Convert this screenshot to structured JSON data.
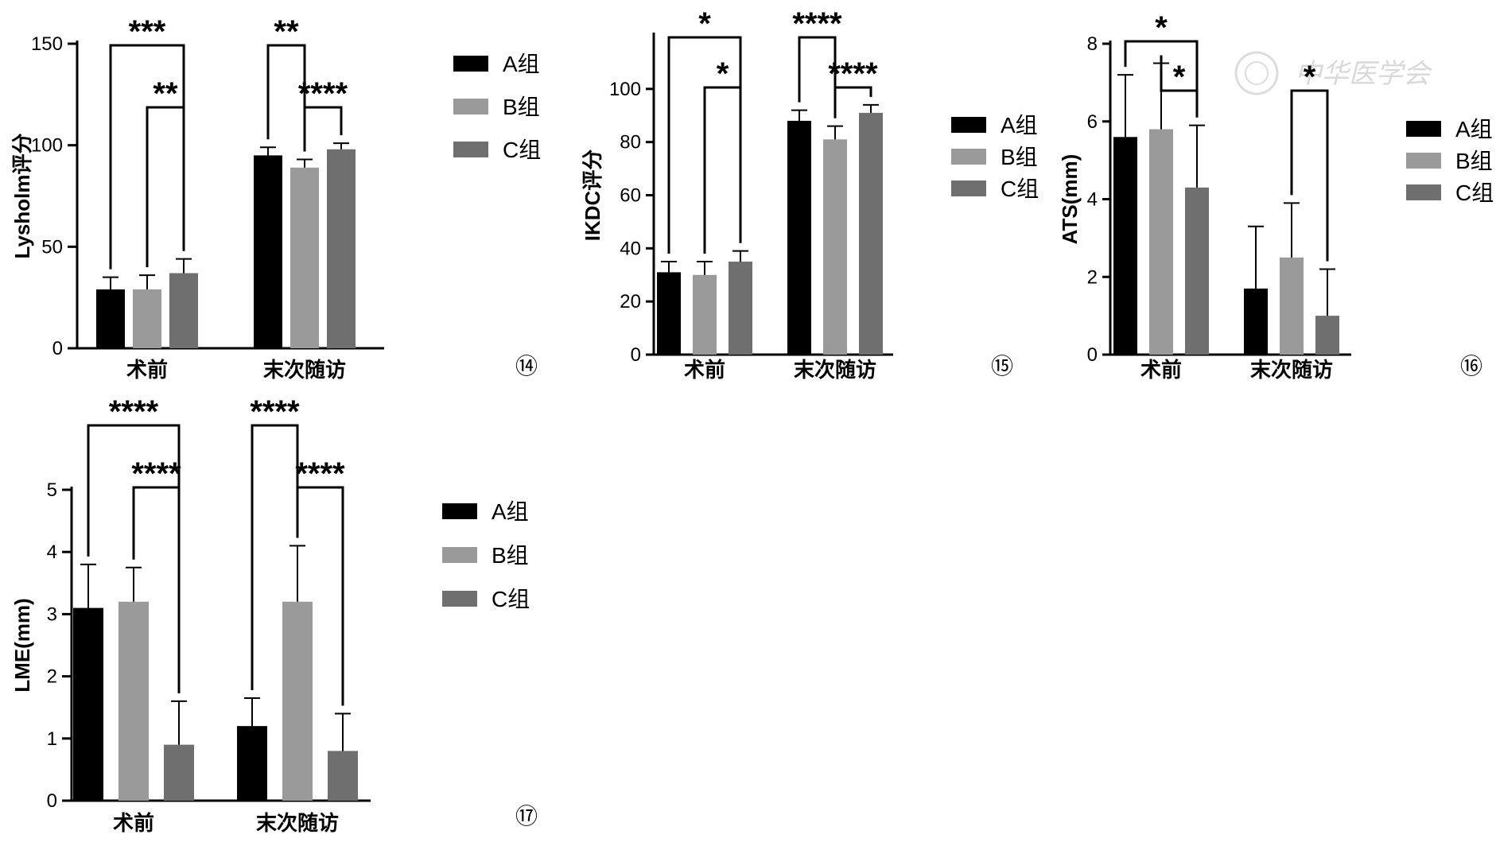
{
  "series_names": [
    "A组",
    "B组",
    "C组"
  ],
  "series_colors": [
    "#000000",
    "#9a9a9a",
    "#6f6f6f"
  ],
  "watermark": "中华医学会",
  "chart_data": [
    {
      "type": "bar",
      "panel": "⑭",
      "categories": [
        "术前",
        "末次随访"
      ],
      "ylabel": "Lysholm评分",
      "ylim": [
        0,
        150
      ],
      "yticks": [
        0,
        50,
        100,
        150
      ],
      "series": [
        {
          "name": "A组",
          "values": [
            29,
            95
          ],
          "errors": [
            6,
            4
          ]
        },
        {
          "name": "B组",
          "values": [
            29,
            89
          ],
          "errors": [
            7,
            4
          ]
        },
        {
          "name": "C组",
          "values": [
            37,
            98
          ],
          "errors": [
            7,
            3
          ]
        }
      ],
      "significance": [
        {
          "group": 0,
          "from": 0,
          "to": 2,
          "label": "***",
          "level": 0
        },
        {
          "group": 0,
          "from": 1,
          "to": 2,
          "label": "**",
          "level": 1
        },
        {
          "group": 1,
          "from": 0,
          "to": 1,
          "label": "**",
          "level": 0
        },
        {
          "group": 1,
          "from": 1,
          "to": 2,
          "label": "****",
          "level": 1
        }
      ]
    },
    {
      "type": "bar",
      "panel": "⑮",
      "categories": [
        "术前",
        "末次随访"
      ],
      "ylabel": "IKDC评分",
      "ylim": [
        0,
        120
      ],
      "yticks": [
        0,
        20,
        40,
        60,
        80,
        100
      ],
      "series": [
        {
          "name": "A组",
          "values": [
            31,
            88
          ],
          "errors": [
            4,
            4
          ]
        },
        {
          "name": "B组",
          "values": [
            30,
            81
          ],
          "errors": [
            5,
            5
          ]
        },
        {
          "name": "C组",
          "values": [
            35,
            91
          ],
          "errors": [
            4,
            3
          ]
        }
      ],
      "significance": [
        {
          "group": 0,
          "from": 0,
          "to": 2,
          "label": "*",
          "level": 0
        },
        {
          "group": 0,
          "from": 1,
          "to": 2,
          "label": "*",
          "level": 1
        },
        {
          "group": 1,
          "from": 0,
          "to": 1,
          "label": "****",
          "level": 0
        },
        {
          "group": 1,
          "from": 1,
          "to": 2,
          "label": "****",
          "level": 1
        }
      ]
    },
    {
      "type": "bar",
      "panel": "⑯",
      "categories": [
        "术前",
        "末次随访"
      ],
      "ylabel": "ATS(mm)",
      "ylim": [
        0,
        8
      ],
      "yticks": [
        0,
        2,
        4,
        6,
        8
      ],
      "series": [
        {
          "name": "A组",
          "values": [
            5.6,
            1.7
          ],
          "errors": [
            1.6,
            1.6
          ]
        },
        {
          "name": "B组",
          "values": [
            5.8,
            2.5
          ],
          "errors": [
            1.7,
            1.4
          ]
        },
        {
          "name": "C组",
          "values": [
            4.3,
            1.0
          ],
          "errors": [
            1.6,
            1.2
          ]
        }
      ],
      "significance": [
        {
          "group": 0,
          "from": 0,
          "to": 2,
          "label": "*",
          "level": 0
        },
        {
          "group": 0,
          "from": 1,
          "to": 2,
          "label": "*",
          "level": 1
        },
        {
          "group": 1,
          "from": 1,
          "to": 2,
          "label": "*",
          "level": 1
        }
      ]
    },
    {
      "type": "bar",
      "panel": "⑰",
      "categories": [
        "术前",
        "末次随访"
      ],
      "ylabel": "LME(mm)",
      "ylim": [
        0,
        5
      ],
      "yticks": [
        0,
        1,
        2,
        3,
        4,
        5
      ],
      "series": [
        {
          "name": "A组",
          "values": [
            3.1,
            1.2
          ],
          "errors": [
            0.7,
            0.45
          ]
        },
        {
          "name": "B组",
          "values": [
            3.2,
            3.2
          ],
          "errors": [
            0.55,
            0.9
          ]
        },
        {
          "name": "C组",
          "values": [
            0.9,
            0.8
          ],
          "errors": [
            0.7,
            0.6
          ]
        }
      ],
      "significance": [
        {
          "group": 0,
          "from": 0,
          "to": 2,
          "label": "****",
          "level": 0
        },
        {
          "group": 0,
          "from": 1,
          "to": 2,
          "label": "****",
          "level": 1
        },
        {
          "group": 1,
          "from": 0,
          "to": 1,
          "label": "****",
          "level": 0
        },
        {
          "group": 1,
          "from": 1,
          "to": 2,
          "label": "****",
          "level": 1
        }
      ]
    }
  ]
}
